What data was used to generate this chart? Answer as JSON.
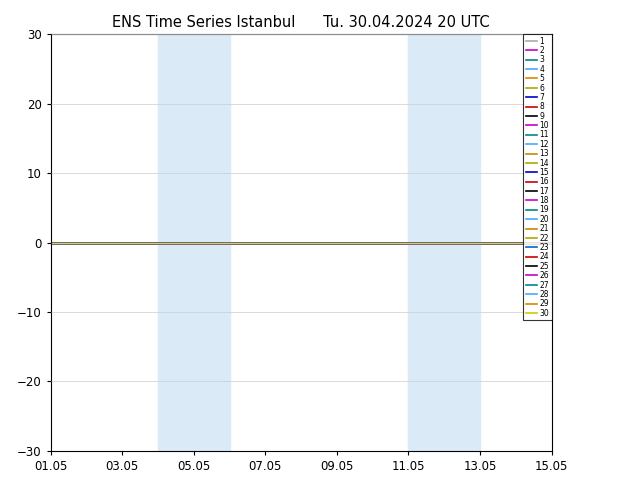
{
  "title": "ENS Time Series Istanbul      Tu. 30.04.2024 20 UTC",
  "ylim": [
    -30,
    30
  ],
  "yticks": [
    -30,
    -20,
    -10,
    0,
    10,
    20,
    30
  ],
  "xticklabels": [
    "01.05",
    "03.05",
    "05.05",
    "07.05",
    "09.05",
    "11.05",
    "13.05",
    "15.05"
  ],
  "xtick_positions": [
    1,
    3,
    5,
    7,
    9,
    11,
    13,
    15
  ],
  "shaded_bands": [
    [
      4.0,
      5.0
    ],
    [
      5.0,
      6.0
    ],
    [
      11.0,
      12.0
    ],
    [
      12.0,
      13.0
    ]
  ],
  "shaded_color": "#daeaf7",
  "line_colors": [
    "#aaaaaa",
    "#cc00cc",
    "#008888",
    "#44aaff",
    "#dd8800",
    "#aaaa00",
    "#0000cc",
    "#cc0000",
    "#000000",
    "#cc00cc",
    "#008888",
    "#44aaff",
    "#cc8800",
    "#aaaa00",
    "#0000cc",
    "#cc0000",
    "#000000",
    "#cc00cc",
    "#008888",
    "#44aaff",
    "#cc8800",
    "#aaaa00",
    "#0066cc",
    "#cc0000",
    "#000000",
    "#cc00cc",
    "#008888",
    "#44aaff",
    "#dd8800",
    "#cccc00"
  ],
  "n_members": 30,
  "x_start": 1.0,
  "x_end": 15.0,
  "bg_color": "#ffffff",
  "legend_fontsize": 5.5,
  "title_fontsize": 10.5
}
